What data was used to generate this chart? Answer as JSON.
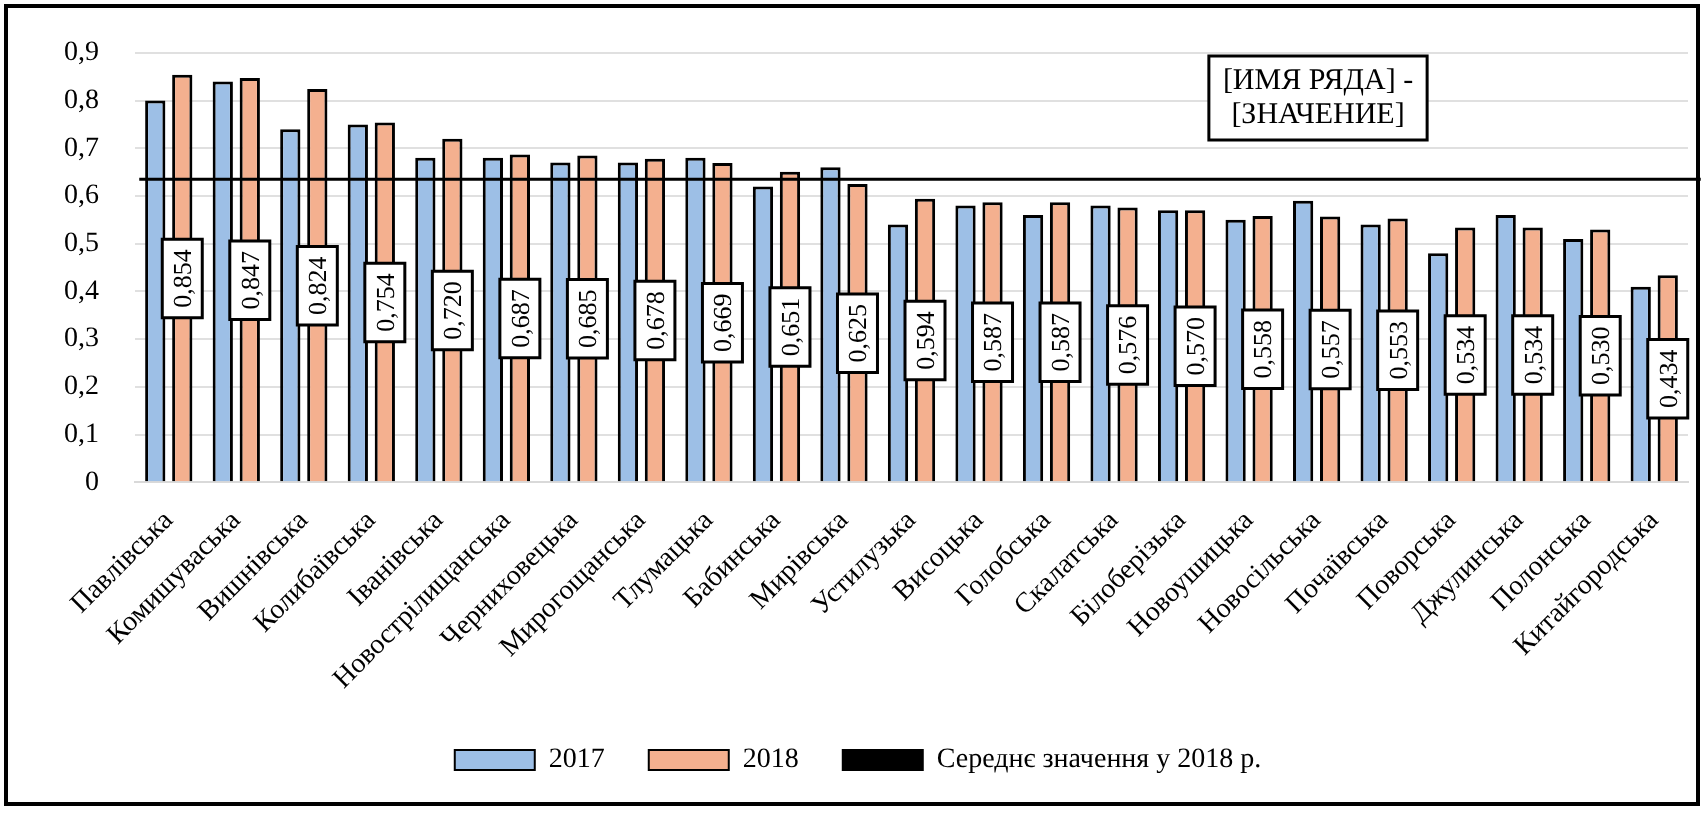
{
  "chart_data": {
    "type": "bar",
    "categories": [
      "Павлівська",
      "Комишуваська",
      "Вишнівська",
      "Колибаївська",
      "Іванівська",
      "Новострілищанська",
      "Черниховецька",
      "Мирогощанська",
      "Тлумацька",
      "Бабинська",
      "Мирівська",
      "Устилузька",
      "Висоцька",
      "Голобська",
      "Скалатська",
      "Білоберізька",
      "Новоушицька",
      "Новосільська",
      "Почаївська",
      "Поворська",
      "Джулинська",
      "Полонська",
      "Китайгородська"
    ],
    "series": [
      {
        "name": "2017",
        "color": "#9dbfe6",
        "values": [
          0.8,
          0.84,
          0.74,
          0.75,
          0.68,
          0.68,
          0.67,
          0.67,
          0.68,
          0.62,
          0.66,
          0.54,
          0.58,
          0.56,
          0.58,
          0.57,
          0.55,
          0.59,
          0.54,
          0.48,
          0.56,
          0.51,
          0.41
        ]
      },
      {
        "name": "2018",
        "color": "#f4b08f",
        "values": [
          0.854,
          0.847,
          0.824,
          0.754,
          0.72,
          0.687,
          0.685,
          0.678,
          0.669,
          0.651,
          0.625,
          0.594,
          0.587,
          0.587,
          0.576,
          0.57,
          0.558,
          0.557,
          0.553,
          0.534,
          0.534,
          0.53,
          0.434
        ],
        "value_labels": [
          "0,854",
          "0,847",
          "0,824",
          "0,754",
          "0,720",
          "0,687",
          "0,685",
          "0,678",
          "0,669",
          "0,651",
          "0,625",
          "0,594",
          "0,587",
          "0,587",
          "0,576",
          "0,570",
          "0,558",
          "0,557",
          "0,553",
          "0,534",
          "0,534",
          "0,530",
          "0,434"
        ]
      }
    ],
    "ref_lines": [
      {
        "axis": "y",
        "value": 0.635,
        "label": "Середнє значення у 2018 р.",
        "color": "#000000"
      }
    ],
    "annotations": [
      "[ИМЯ РЯДА] - [ЗНАЧЕНИЕ]"
    ],
    "ylim": [
      0,
      0.9
    ],
    "yticks": [
      {
        "value": 0,
        "label": "0"
      },
      {
        "value": 0.1,
        "label": "0,1"
      },
      {
        "value": 0.2,
        "label": "0,2"
      },
      {
        "value": 0.3,
        "label": "0,3"
      },
      {
        "value": 0.4,
        "label": "0,4"
      },
      {
        "value": 0.5,
        "label": "0,5"
      },
      {
        "value": 0.6,
        "label": "0,6"
      },
      {
        "value": 0.7,
        "label": "0,7"
      },
      {
        "value": 0.8,
        "label": "0,8"
      },
      {
        "value": 0.9,
        "label": "0,9"
      }
    ],
    "grid": "y",
    "legend": "bottom"
  }
}
